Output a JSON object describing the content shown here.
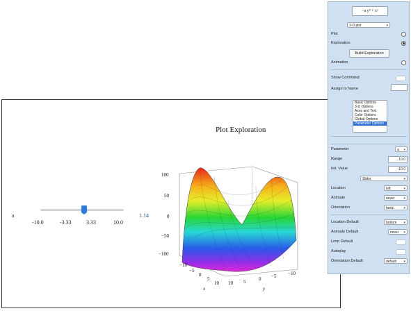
{
  "plot": {
    "title": "Plot Exploration",
    "slider": {
      "label": "a",
      "ticks": [
        "-10.0",
        "-3.33",
        "3.33",
        "10.0"
      ],
      "value_text": "1.14",
      "value": 1.14,
      "min": -10,
      "max": 10
    },
    "z_ticks": [
      "100",
      "50",
      "0",
      "−50",
      "−100"
    ],
    "x_ticks": [
      "−10",
      "−5",
      "0",
      "5",
      "10"
    ],
    "y_ticks": [
      "10",
      "5",
      "0",
      "−5",
      "−10"
    ],
    "x_label": "x",
    "y_label": "y"
  },
  "panel": {
    "expression": "−a y² + x²",
    "plot_type": "3-D plot",
    "plot_label": "Plot",
    "exploration_label": "Exploration",
    "build_button": "Build Exploration",
    "animation_label": "Animation",
    "show_command_label": "Show Command",
    "assign_name_label": "Assign to Name",
    "options": [
      "Basic Options",
      "3-D Options",
      "Axes and Text",
      "Color Options",
      "Global Options",
      "Parameter Options"
    ],
    "selected_option": 5,
    "parameter_label": "Parameter",
    "parameter_value": "a",
    "range_label": "Range",
    "range_value": ".. 10.0",
    "init_value_label": "Init. Value",
    "init_value": "-10.0",
    "control_value": "Slider",
    "location_label": "Location",
    "location_value": "left",
    "animate_label": "Animate",
    "animate_value": "never",
    "orientation_label": "Orientation",
    "orientation_value": "horiz.",
    "location_default_label": "Location Default",
    "location_default_value": "bottom",
    "animate_default_label": "Animate Default",
    "animate_default_value": "never",
    "loop_default_label": "Loop Default",
    "autoplay_label": "Autoplay",
    "orientation_default_label": "Orientation Default",
    "orientation_default_value": "default"
  }
}
